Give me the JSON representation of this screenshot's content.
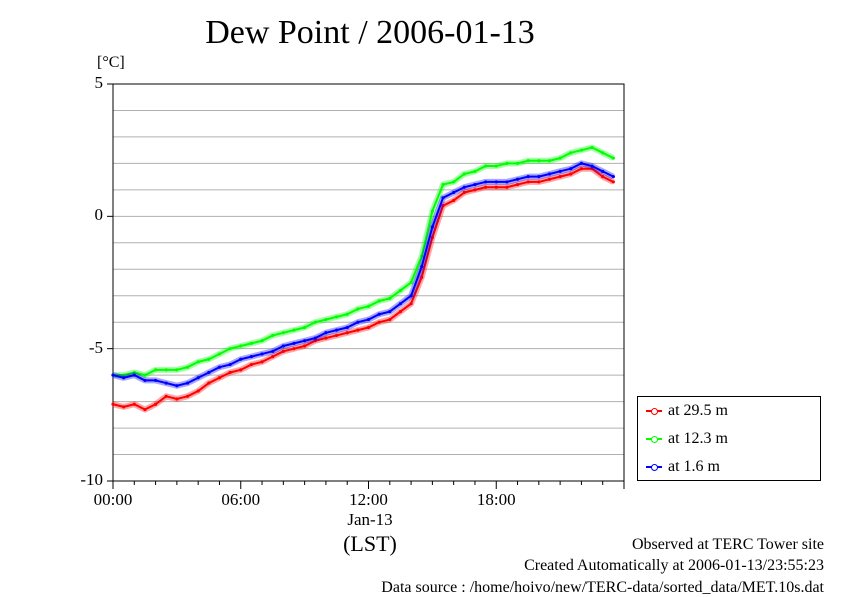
{
  "chart_data": {
    "type": "line",
    "title": "Dew Point / 2006-01-13",
    "ylabel": "[°C]",
    "xlabel": "(LST)",
    "date_label": "Jan-13",
    "x_unit": "hours",
    "xlim": [
      0,
      24
    ],
    "ylim": [
      -10,
      5
    ],
    "y_ticks": [
      5,
      0,
      -5,
      -10
    ],
    "y_tick_labels": [
      "5",
      "0",
      "-5",
      "-10"
    ],
    "x_ticks": [
      0,
      6,
      12,
      18
    ],
    "x_tick_labels": [
      "00:00",
      "06:00",
      "12:00",
      "18:00"
    ],
    "grid": true,
    "legend_position": "bottom-right outside",
    "series": [
      {
        "name": "at 29.5 m",
        "color": "#ff0000",
        "x": [
          0,
          0.5,
          1,
          1.5,
          2,
          2.5,
          3,
          3.5,
          4,
          4.5,
          5,
          5.5,
          6,
          6.5,
          7,
          7.5,
          8,
          8.5,
          9,
          9.5,
          10,
          10.5,
          11,
          11.5,
          12,
          12.5,
          13,
          13.5,
          14,
          14.5,
          15,
          15.5,
          16,
          16.5,
          17,
          17.5,
          18,
          18.5,
          19,
          19.5,
          20,
          20.5,
          21,
          21.5,
          22,
          22.5,
          23,
          23.5
        ],
        "values": [
          -7.1,
          -7.2,
          -7.1,
          -7.3,
          -7.1,
          -6.8,
          -6.9,
          -6.8,
          -6.6,
          -6.3,
          -6.1,
          -5.9,
          -5.8,
          -5.6,
          -5.5,
          -5.3,
          -5.1,
          -5.0,
          -4.9,
          -4.7,
          -4.6,
          -4.5,
          -4.4,
          -4.3,
          -4.2,
          -4.0,
          -3.9,
          -3.6,
          -3.3,
          -2.3,
          -0.8,
          0.4,
          0.6,
          0.9,
          1.0,
          1.1,
          1.1,
          1.1,
          1.2,
          1.3,
          1.3,
          1.4,
          1.5,
          1.6,
          1.8,
          1.8,
          1.5,
          1.3
        ]
      },
      {
        "name": "at 12.3 m",
        "color": "#00ff00",
        "x": [
          0,
          0.5,
          1,
          1.5,
          2,
          2.5,
          3,
          3.5,
          4,
          4.5,
          5,
          5.5,
          6,
          6.5,
          7,
          7.5,
          8,
          8.5,
          9,
          9.5,
          10,
          10.5,
          11,
          11.5,
          12,
          12.5,
          13,
          13.5,
          14,
          14.5,
          15,
          15.5,
          16,
          16.5,
          17,
          17.5,
          18,
          18.5,
          19,
          19.5,
          20,
          20.5,
          21,
          21.5,
          22,
          22.5,
          23,
          23.5
        ],
        "values": [
          -6.0,
          -6.0,
          -5.9,
          -6.0,
          -5.8,
          -5.8,
          -5.8,
          -5.7,
          -5.5,
          -5.4,
          -5.2,
          -5.0,
          -4.9,
          -4.8,
          -4.7,
          -4.5,
          -4.4,
          -4.3,
          -4.2,
          -4.0,
          -3.9,
          -3.8,
          -3.7,
          -3.5,
          -3.4,
          -3.2,
          -3.1,
          -2.8,
          -2.5,
          -1.5,
          0.2,
          1.2,
          1.3,
          1.6,
          1.7,
          1.9,
          1.9,
          2.0,
          2.0,
          2.1,
          2.1,
          2.1,
          2.2,
          2.4,
          2.5,
          2.6,
          2.4,
          2.2
        ]
      },
      {
        "name": "at 1.6 m",
        "color": "#0000ff",
        "x": [
          0,
          0.5,
          1,
          1.5,
          2,
          2.5,
          3,
          3.5,
          4,
          4.5,
          5,
          5.5,
          6,
          6.5,
          7,
          7.5,
          8,
          8.5,
          9,
          9.5,
          10,
          10.5,
          11,
          11.5,
          12,
          12.5,
          13,
          13.5,
          14,
          14.5,
          15,
          15.5,
          16,
          16.5,
          17,
          17.5,
          18,
          18.5,
          19,
          19.5,
          20,
          20.5,
          21,
          21.5,
          22,
          22.5,
          23,
          23.5
        ],
        "values": [
          -6.0,
          -6.1,
          -6.0,
          -6.2,
          -6.2,
          -6.3,
          -6.4,
          -6.3,
          -6.1,
          -5.9,
          -5.7,
          -5.6,
          -5.4,
          -5.3,
          -5.2,
          -5.1,
          -4.9,
          -4.8,
          -4.7,
          -4.6,
          -4.4,
          -4.3,
          -4.2,
          -4.0,
          -3.9,
          -3.7,
          -3.6,
          -3.3,
          -3.0,
          -1.9,
          -0.4,
          0.7,
          0.9,
          1.1,
          1.2,
          1.3,
          1.3,
          1.3,
          1.4,
          1.5,
          1.5,
          1.6,
          1.7,
          1.8,
          2.0,
          1.9,
          1.7,
          1.5
        ]
      }
    ]
  },
  "footer": {
    "line1": "Observed at TERC Tower site",
    "line2": "Created Automatically at 2006-01-13/23:55:23",
    "line3": "Data source : /home/hoivo/new/TERC-data/sorted_data/MET.10s.dat"
  }
}
